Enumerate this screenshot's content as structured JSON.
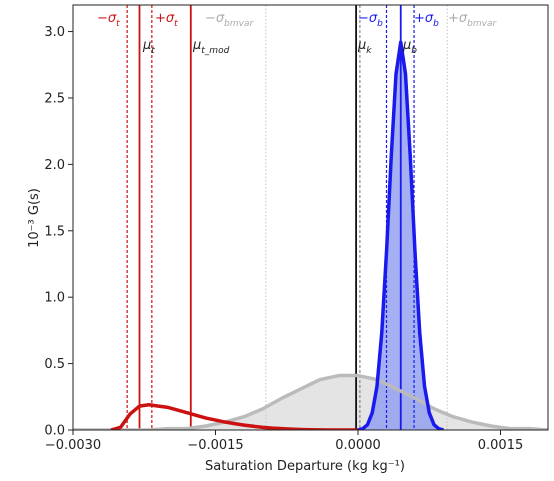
{
  "chart_data": {
    "type": "line",
    "xlabel": "Saturation Departure (kg kg⁻¹)",
    "ylabel": "10⁻³ G(s)",
    "xlim": [
      -0.003,
      0.002
    ],
    "ylim": [
      0,
      3.2
    ],
    "xticks": [
      {
        "value": -0.003,
        "label": "−0.0030"
      },
      {
        "value": -0.0015,
        "label": "−0.0015"
      },
      {
        "value": 0,
        "label": "0.0000"
      },
      {
        "value": 0.0015,
        "label": "0.0015"
      }
    ],
    "yticks": [
      {
        "value": 0,
        "label": "0.0"
      },
      {
        "value": 0.5,
        "label": "0.5"
      },
      {
        "value": 1,
        "label": "1.0"
      },
      {
        "value": 1.5,
        "label": "1.5"
      },
      {
        "value": 2,
        "label": "2.0"
      },
      {
        "value": 2.5,
        "label": "2.5"
      },
      {
        "value": 3,
        "label": "3.0"
      }
    ],
    "series": [
      {
        "color": "#bbbbbb",
        "fill": "#dddddd",
        "x": [
          -0.003,
          -0.0028,
          -0.0026,
          -0.0024,
          -0.0022,
          -0.002,
          -0.0018,
          -0.0016,
          -0.0014,
          -0.0012,
          -0.001,
          -0.0008,
          -0.0006,
          -0.0004,
          -0.0002,
          0,
          0.0002,
          0.0004,
          0.0006,
          0.0008,
          0.001,
          0.0012,
          0.0014,
          0.0016,
          0.0018,
          0.002
        ],
        "values": [
          0,
          0,
          0,
          0,
          0,
          0.01,
          0.01,
          0.03,
          0.06,
          0.1,
          0.16,
          0.24,
          0.31,
          0.38,
          0.41,
          0.41,
          0.38,
          0.31,
          0.24,
          0.16,
          0.1,
          0.06,
          0.03,
          0.01,
          0.01,
          0
        ]
      },
      {
        "color": "#cc1111",
        "x": [
          -0.0026,
          -0.0025,
          -0.0024,
          -0.0023,
          -0.0022,
          -0.0021,
          -0.002,
          -0.0019,
          -0.0018,
          -0.0017,
          -0.0016,
          -0.0015,
          -0.0014,
          -0.0013,
          -0.0012,
          -0.0011,
          -0.001,
          -0.0009,
          -0.0008,
          -0.0007,
          -0.0006,
          -0.0005,
          -0.0004,
          -0.0003,
          -0.0002,
          -0.0001,
          0
        ],
        "values": [
          0,
          0.02,
          0.12,
          0.18,
          0.19,
          0.18,
          0.17,
          0.15,
          0.13,
          0.11,
          0.09,
          0.075,
          0.06,
          0.048,
          0.037,
          0.028,
          0.02,
          0.014,
          0.01,
          0.007,
          0.004,
          0.002,
          0.001,
          0,
          0,
          0,
          0
        ]
      },
      {
        "color": "#1a1aee",
        "fill": "#8f9cf0",
        "x": [
          0,
          5e-05,
          0.0001,
          0.00015,
          0.0002,
          0.00025,
          0.0003,
          0.00035,
          0.0004,
          0.00045,
          0.0005,
          0.00055,
          0.0006,
          0.00065,
          0.0007,
          0.00075,
          0.0008,
          0.00085,
          0.0009
        ],
        "values": [
          0,
          0.01,
          0.04,
          0.13,
          0.33,
          0.73,
          1.34,
          2.06,
          2.68,
          2.92,
          2.68,
          2.06,
          1.34,
          0.73,
          0.33,
          0.13,
          0.04,
          0.01,
          0
        ]
      }
    ],
    "vlines": [
      {
        "x": -0.00243,
        "color": "#cc1111",
        "style": "dashed"
      },
      {
        "x": -0.0023,
        "color": "#cc1111",
        "style": "solid"
      },
      {
        "x": -0.00217,
        "color": "#cc1111",
        "style": "dashed"
      },
      {
        "x": -0.00176,
        "color": "#cc1111",
        "style": "solid"
      },
      {
        "x": -0.00097,
        "color": "#cccccc",
        "style": "dotted"
      },
      {
        "x": -2e-05,
        "color": "#111111",
        "style": "solid"
      },
      {
        "x": 2e-05,
        "color": "#888888",
        "style": "dashed"
      },
      {
        "x": 0.0003,
        "color": "#1a1aee",
        "style": "dashed"
      },
      {
        "x": 0.00045,
        "color": "#1a1aee",
        "style": "solid"
      },
      {
        "x": 0.00059,
        "color": "#1a1aee",
        "style": "dashed"
      },
      {
        "x": 0.00094,
        "color": "#cccccc",
        "style": "dotted"
      }
    ],
    "annotations": [
      {
        "text": "−σ",
        "sub": "t",
        "color": "#cc1111"
      },
      {
        "text": "+σ",
        "sub": "t",
        "color": "#cc1111"
      },
      {
        "text": "−σ",
        "sub": "bmvar",
        "color": "#aaaaaa"
      },
      {
        "text": "μ",
        "sub": "t",
        "color": "#222222"
      },
      {
        "text": "μ",
        "sub": "t_mod",
        "color": "#222222"
      },
      {
        "text": "μ",
        "sub": "k",
        "color": "#222222"
      },
      {
        "text": "−σ",
        "sub": "b",
        "color": "#1a1aee"
      },
      {
        "text": "+σ",
        "sub": "b",
        "color": "#1a1aee"
      },
      {
        "text": "μ",
        "sub": "b",
        "color": "#222222"
      },
      {
        "text": "+σ",
        "sub": "bmvar",
        "color": "#aaaaaa"
      }
    ]
  }
}
